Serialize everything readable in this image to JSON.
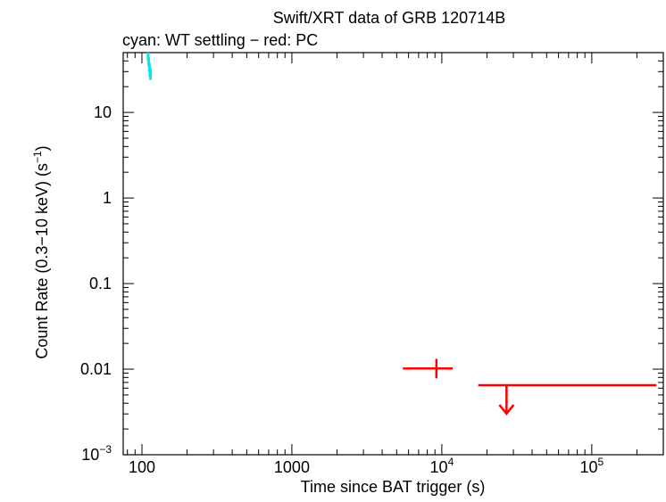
{
  "chart_data": {
    "type": "scatter",
    "title": "Swift/XRT data of GRB 120714B",
    "subtitle": "cyan: WT settling − red: PC",
    "xlabel": "Time since BAT trigger (s)",
    "ylabel_main": "Count Rate (0.3−10 keV) (s",
    "ylabel_sup": "−1",
    "ylabel_end": ")",
    "x_scale": "log",
    "y_scale": "log",
    "xlim": [
      75,
      300000
    ],
    "ylim": [
      0.001,
      50
    ],
    "grid": false,
    "x_ticks": [
      {
        "value": 100,
        "base": "100",
        "sup": ""
      },
      {
        "value": 1000,
        "base": "1000",
        "sup": ""
      },
      {
        "value": 10000,
        "base": "10",
        "sup": "4"
      },
      {
        "value": 100000,
        "base": "10",
        "sup": "5"
      }
    ],
    "y_ticks": [
      {
        "value": 10,
        "base": "10",
        "sup": ""
      },
      {
        "value": 1,
        "base": "1",
        "sup": ""
      },
      {
        "value": 0.1,
        "base": "0.1",
        "sup": ""
      },
      {
        "value": 0.01,
        "base": "0.01",
        "sup": ""
      },
      {
        "value": 0.001,
        "base": "10",
        "sup": "−3"
      }
    ],
    "series": [
      {
        "color": "#00e5ee",
        "points": [
          {
            "x": 110,
            "x_lo": 109.5,
            "x_hi": 110.5,
            "y": 45,
            "y_lo": 40,
            "y_hi": 50
          },
          {
            "x": 111,
            "x_lo": 110.5,
            "x_hi": 111.5,
            "y": 39,
            "y_lo": 35,
            "y_hi": 44
          },
          {
            "x": 112,
            "x_lo": 111.5,
            "x_hi": 112.5,
            "y": 34,
            "y_lo": 30,
            "y_hi": 38
          },
          {
            "x": 113,
            "x_lo": 112.5,
            "x_hi": 113.5,
            "y": 30,
            "y_lo": 26,
            "y_hi": 34
          },
          {
            "x": 114,
            "x_lo": 113.5,
            "x_hi": 114.5,
            "y": 28,
            "y_lo": 24,
            "y_hi": 32
          }
        ]
      },
      {
        "color": "#ff0000",
        "points": [
          {
            "x": 9200,
            "x_lo": 5500,
            "x_hi": 11800,
            "y": 0.0102,
            "y_lo": 0.0078,
            "y_hi": 0.0132,
            "upper_limit": false
          },
          {
            "x": 27000,
            "x_lo": 17500,
            "x_hi": 270000,
            "y": 0.0065,
            "upper_limit": true
          }
        ]
      }
    ]
  }
}
